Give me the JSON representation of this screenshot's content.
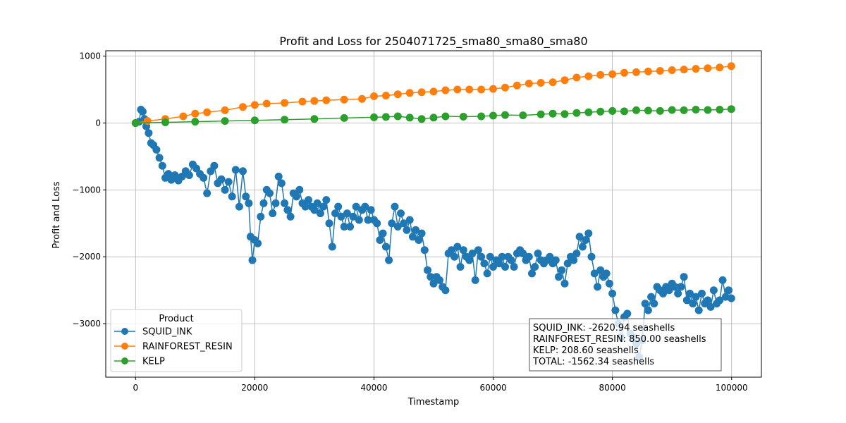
{
  "chart_data": {
    "type": "line",
    "title": "Profit and Loss for 2504071725_sma80_sma80_sma80",
    "xlabel": "Timestamp",
    "ylabel": "Profit and Loss",
    "xlim": [
      -5000,
      105000
    ],
    "ylim": [
      -3800,
      1080
    ],
    "x_ticks": [
      0,
      20000,
      40000,
      60000,
      80000,
      100000
    ],
    "x_tick_labels": [
      "0",
      "20000",
      "40000",
      "60000",
      "80000",
      "100000"
    ],
    "y_ticks": [
      -3000,
      -2000,
      -1000,
      0,
      1000
    ],
    "y_tick_labels": [
      "−3000",
      "−2000",
      "−1000",
      "0",
      "1000"
    ],
    "grid": true,
    "legend": {
      "title": "Product",
      "placement": "lower-left"
    },
    "series": [
      {
        "name": "SQUID_INK",
        "color": "#1f77b4",
        "points": [
          [
            0,
            0
          ],
          [
            600,
            20
          ],
          [
            900,
            200
          ],
          [
            1200,
            170
          ],
          [
            1500,
            60
          ],
          [
            1800,
            -50
          ],
          [
            2200,
            -150
          ],
          [
            2600,
            -300
          ],
          [
            3000,
            -330
          ],
          [
            3500,
            -400
          ],
          [
            4000,
            -520
          ],
          [
            4500,
            -640
          ],
          [
            5000,
            -820
          ],
          [
            5500,
            -760
          ],
          [
            6000,
            -850
          ],
          [
            6600,
            -780
          ],
          [
            7200,
            -860
          ],
          [
            7800,
            -800
          ],
          [
            8400,
            -720
          ],
          [
            9000,
            -780
          ],
          [
            9600,
            -620
          ],
          [
            10200,
            -680
          ],
          [
            10800,
            -760
          ],
          [
            11400,
            -820
          ],
          [
            12000,
            -1050
          ],
          [
            12600,
            -720
          ],
          [
            13200,
            -640
          ],
          [
            13800,
            -900
          ],
          [
            14400,
            -840
          ],
          [
            15000,
            -1000
          ],
          [
            15600,
            -880
          ],
          [
            16200,
            -1100
          ],
          [
            16800,
            -700
          ],
          [
            17400,
            -1250
          ],
          [
            18000,
            -720
          ],
          [
            18500,
            -1100
          ],
          [
            19000,
            -1200
          ],
          [
            19300,
            -1700
          ],
          [
            19600,
            -2050
          ],
          [
            20000,
            -1750
          ],
          [
            20500,
            -1800
          ],
          [
            21000,
            -1400
          ],
          [
            21500,
            -1200
          ],
          [
            22000,
            -1000
          ],
          [
            22500,
            -1050
          ],
          [
            23000,
            -1350
          ],
          [
            23500,
            -1200
          ],
          [
            24000,
            -800
          ],
          [
            24500,
            -900
          ],
          [
            25000,
            -1200
          ],
          [
            25500,
            -1300
          ],
          [
            26000,
            -1400
          ],
          [
            26500,
            -1050
          ],
          [
            27000,
            -1100
          ],
          [
            27500,
            -1000
          ],
          [
            28000,
            -1200
          ],
          [
            28500,
            -1250
          ],
          [
            29000,
            -1150
          ],
          [
            29500,
            -1250
          ],
          [
            30000,
            -1300
          ],
          [
            30500,
            -1200
          ],
          [
            31000,
            -1350
          ],
          [
            31500,
            -1250
          ],
          [
            32000,
            -1150
          ],
          [
            32500,
            -1500
          ],
          [
            33000,
            -1850
          ],
          [
            33500,
            -1350
          ],
          [
            34000,
            -1250
          ],
          [
            34500,
            -1400
          ],
          [
            35000,
            -1550
          ],
          [
            35500,
            -1350
          ],
          [
            36000,
            -1550
          ],
          [
            36500,
            -1400
          ],
          [
            37000,
            -1250
          ],
          [
            37500,
            -1450
          ],
          [
            38000,
            -1300
          ],
          [
            38500,
            -1250
          ],
          [
            39000,
            -1450
          ],
          [
            39500,
            -1300
          ],
          [
            40000,
            -1450
          ],
          [
            40500,
            -1500
          ],
          [
            41000,
            -1750
          ],
          [
            41500,
            -1650
          ],
          [
            42000,
            -1850
          ],
          [
            42500,
            -2050
          ],
          [
            43000,
            -1500
          ],
          [
            43500,
            -1250
          ],
          [
            44000,
            -1550
          ],
          [
            44500,
            -1350
          ],
          [
            45000,
            -1500
          ],
          [
            45500,
            -1600
          ],
          [
            46000,
            -1450
          ],
          [
            46500,
            -1700
          ],
          [
            47000,
            -1600
          ],
          [
            47500,
            -1750
          ],
          [
            48000,
            -1650
          ],
          [
            48500,
            -1900
          ],
          [
            49000,
            -2200
          ],
          [
            49500,
            -2300
          ],
          [
            50000,
            -2400
          ],
          [
            50500,
            -2300
          ],
          [
            51000,
            -2350
          ],
          [
            51500,
            -2450
          ],
          [
            52000,
            -2500
          ],
          [
            52500,
            -1950
          ],
          [
            53000,
            -1900
          ],
          [
            53500,
            -2000
          ],
          [
            54000,
            -1850
          ],
          [
            54500,
            -2150
          ],
          [
            55000,
            -1900
          ],
          [
            55500,
            -2000
          ],
          [
            56000,
            -2050
          ],
          [
            56500,
            -1950
          ],
          [
            57000,
            -2350
          ],
          [
            57500,
            -1900
          ],
          [
            58000,
            -2000
          ],
          [
            58500,
            -2100
          ],
          [
            59000,
            -2250
          ],
          [
            59500,
            -2000
          ],
          [
            60000,
            -2150
          ],
          [
            60500,
            -2050
          ],
          [
            61000,
            -2100
          ],
          [
            61500,
            -2000
          ],
          [
            62000,
            -2150
          ],
          [
            62500,
            -2000
          ],
          [
            63000,
            -2050
          ],
          [
            63500,
            -2150
          ],
          [
            64000,
            -1950
          ],
          [
            64500,
            -1900
          ],
          [
            65000,
            -1950
          ],
          [
            65500,
            -2050
          ],
          [
            66000,
            -2000
          ],
          [
            66500,
            -2250
          ],
          [
            67000,
            -2150
          ],
          [
            67500,
            -1950
          ],
          [
            68000,
            -2050
          ],
          [
            68500,
            -2100
          ],
          [
            69000,
            -2050
          ],
          [
            69500,
            -2000
          ],
          [
            70000,
            -2100
          ],
          [
            70500,
            -2050
          ],
          [
            71000,
            -2300
          ],
          [
            71500,
            -2200
          ],
          [
            72000,
            -2400
          ],
          [
            72500,
            -2100
          ],
          [
            73000,
            -2000
          ],
          [
            73500,
            -2050
          ],
          [
            74000,
            -1950
          ],
          [
            74500,
            -1700
          ],
          [
            75000,
            -1850
          ],
          [
            75500,
            -1750
          ],
          [
            76000,
            -1650
          ],
          [
            76500,
            -2000
          ],
          [
            77000,
            -2250
          ],
          [
            77500,
            -2450
          ],
          [
            78000,
            -2200
          ],
          [
            78500,
            -2300
          ],
          [
            79000,
            -2250
          ],
          [
            79500,
            -2400
          ],
          [
            80000,
            -2550
          ],
          [
            80500,
            -2800
          ],
          [
            81000,
            -3000
          ],
          [
            81500,
            -3200
          ],
          [
            82000,
            -2900
          ],
          [
            82500,
            -2850
          ],
          [
            83000,
            -3150
          ],
          [
            83500,
            -3200
          ],
          [
            84000,
            -3300
          ],
          [
            84500,
            -3500
          ],
          [
            85000,
            -3250
          ],
          [
            85500,
            -2700
          ],
          [
            86000,
            -2800
          ],
          [
            86500,
            -2600
          ],
          [
            87000,
            -2700
          ],
          [
            87500,
            -2450
          ],
          [
            88000,
            -2500
          ],
          [
            88500,
            -2550
          ],
          [
            89000,
            -2450
          ],
          [
            89500,
            -2500
          ],
          [
            90000,
            -2400
          ],
          [
            90500,
            -2450
          ],
          [
            91000,
            -2550
          ],
          [
            91500,
            -2450
          ],
          [
            92000,
            -2300
          ],
          [
            92500,
            -2650
          ],
          [
            93000,
            -2550
          ],
          [
            93500,
            -2700
          ],
          [
            94000,
            -2600
          ],
          [
            94500,
            -2800
          ],
          [
            95000,
            -2550
          ],
          [
            95500,
            -2700
          ],
          [
            96000,
            -2650
          ],
          [
            96500,
            -2750
          ],
          [
            97000,
            -2500
          ],
          [
            97500,
            -2700
          ],
          [
            98000,
            -2650
          ],
          [
            98500,
            -2350
          ],
          [
            99000,
            -2600
          ],
          [
            99500,
            -2500
          ],
          [
            99950,
            -2620.94
          ]
        ]
      },
      {
        "name": "RAINFOREST_RESIN",
        "color": "#ff7f0e",
        "points": [
          [
            0,
            0
          ],
          [
            2000,
            30
          ],
          [
            5000,
            60
          ],
          [
            8000,
            100
          ],
          [
            10000,
            140
          ],
          [
            12000,
            160
          ],
          [
            15000,
            190
          ],
          [
            18000,
            240
          ],
          [
            20000,
            270
          ],
          [
            22000,
            290
          ],
          [
            25000,
            300
          ],
          [
            28000,
            320
          ],
          [
            30000,
            330
          ],
          [
            32000,
            340
          ],
          [
            35000,
            350
          ],
          [
            38000,
            360
          ],
          [
            40000,
            400
          ],
          [
            42000,
            410
          ],
          [
            44000,
            430
          ],
          [
            46000,
            450
          ],
          [
            48000,
            460
          ],
          [
            50000,
            470
          ],
          [
            52000,
            490
          ],
          [
            54000,
            500
          ],
          [
            56000,
            500
          ],
          [
            58000,
            500
          ],
          [
            60000,
            510
          ],
          [
            62000,
            530
          ],
          [
            64000,
            560
          ],
          [
            66000,
            590
          ],
          [
            68000,
            600
          ],
          [
            70000,
            610
          ],
          [
            72000,
            640
          ],
          [
            74000,
            680
          ],
          [
            76000,
            700
          ],
          [
            78000,
            720
          ],
          [
            80000,
            730
          ],
          [
            82000,
            750
          ],
          [
            84000,
            760
          ],
          [
            86000,
            770
          ],
          [
            88000,
            780
          ],
          [
            90000,
            790
          ],
          [
            92000,
            800
          ],
          [
            94000,
            810
          ],
          [
            96000,
            820
          ],
          [
            98000,
            830
          ],
          [
            99950,
            850
          ]
        ]
      },
      {
        "name": "KELP",
        "color": "#2ca02c",
        "points": [
          [
            0,
            0
          ],
          [
            5000,
            10
          ],
          [
            10000,
            20
          ],
          [
            15000,
            30
          ],
          [
            20000,
            40
          ],
          [
            25000,
            50
          ],
          [
            30000,
            60
          ],
          [
            35000,
            75
          ],
          [
            40000,
            85
          ],
          [
            42000,
            90
          ],
          [
            44000,
            100
          ],
          [
            46000,
            80
          ],
          [
            48000,
            60
          ],
          [
            50000,
            80
          ],
          [
            52000,
            100
          ],
          [
            55000,
            95
          ],
          [
            58000,
            100
          ],
          [
            60000,
            110
          ],
          [
            62000,
            120
          ],
          [
            65000,
            115
          ],
          [
            68000,
            130
          ],
          [
            70000,
            140
          ],
          [
            72000,
            135
          ],
          [
            74000,
            150
          ],
          [
            76000,
            160
          ],
          [
            78000,
            170
          ],
          [
            80000,
            180
          ],
          [
            82000,
            175
          ],
          [
            84000,
            190
          ],
          [
            86000,
            185
          ],
          [
            88000,
            180
          ],
          [
            90000,
            195
          ],
          [
            92000,
            190
          ],
          [
            94000,
            200
          ],
          [
            96000,
            195
          ],
          [
            98000,
            200
          ],
          [
            99950,
            208.6
          ]
        ]
      }
    ],
    "annotation_lines": [
      "SQUID_INK: -2620.94 seashells",
      "RAINFOREST_RESIN: 850.00 seashells",
      "KELP: 208.60 seashells",
      "TOTAL: -1562.34 seashells"
    ]
  }
}
